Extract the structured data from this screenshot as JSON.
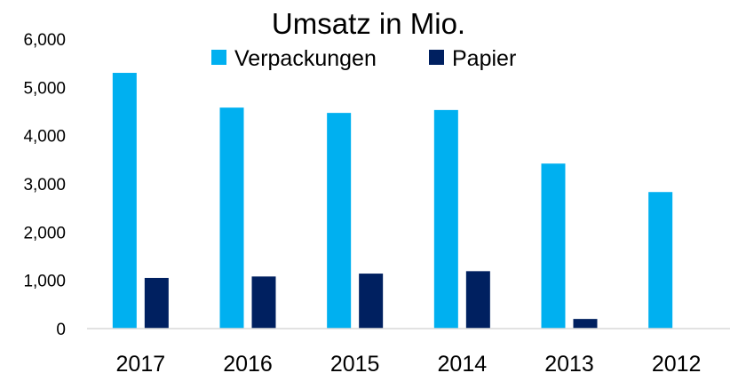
{
  "chart_data": {
    "type": "bar",
    "title": "Umsatz in Mio.",
    "xlabel": "",
    "ylabel": "",
    "categories": [
      "2017",
      "2016",
      "2015",
      "2014",
      "2013",
      "2012"
    ],
    "series": [
      {
        "name": "Verpackungen",
        "color": "#00b0f0",
        "values": [
          5300,
          4580,
          4470,
          4530,
          3420,
          2830
        ]
      },
      {
        "name": "Papier",
        "color": "#002060",
        "values": [
          1050,
          1080,
          1140,
          1190,
          200,
          0
        ]
      }
    ],
    "ylim": [
      0,
      6000
    ],
    "yticks": [
      "0",
      "1,000",
      "2,000",
      "3,000",
      "4,000",
      "5,000",
      "6,000"
    ],
    "grid": false,
    "legend": "top-center"
  }
}
